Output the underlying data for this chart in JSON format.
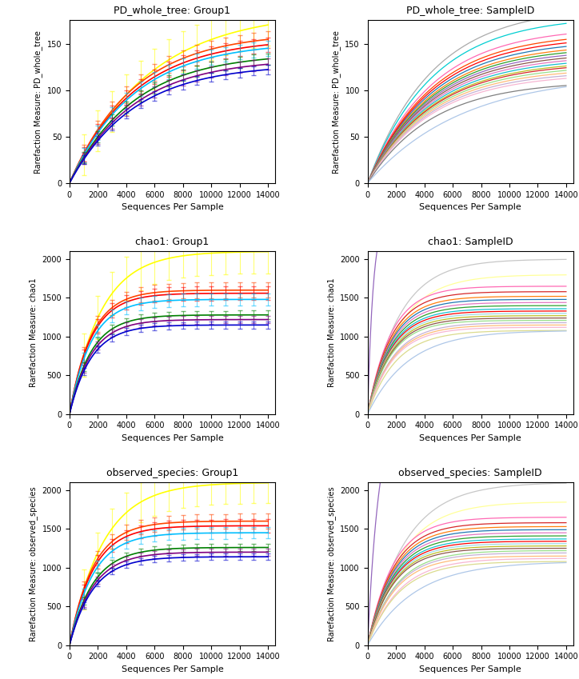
{
  "titles": [
    [
      "PD_whole_tree: Group1",
      "PD_whole_tree: SampleID"
    ],
    [
      "chao1: Group1",
      "chao1: SampleID"
    ],
    [
      "observed_species: Group1",
      "observed_species: SampleID"
    ]
  ],
  "ylabels": [
    "Rarefaction Measure: PD_whole_tree",
    "Rarefaction Measure: chao1",
    "Rarefaction Measure: observed_species"
  ],
  "xlabel": "Sequences Per Sample",
  "pd_group_ylim": [
    0,
    175
  ],
  "pd_group_yticks": [
    0,
    50,
    100,
    150
  ],
  "chao1_ylim": [
    0,
    2100
  ],
  "chao1_yticks": [
    0,
    500,
    1000,
    1500,
    2000
  ],
  "obs_ylim": [
    0,
    2100
  ],
  "obs_yticks": [
    0,
    500,
    1000,
    1500,
    2000
  ],
  "group1_colors": [
    "#ffff00",
    "#ff4500",
    "#ff0000",
    "#00bfff",
    "#008000",
    "#800080",
    "#0000cd"
  ],
  "background_color": "#ffffff",
  "figsize": [
    7.24,
    8.49
  ],
  "dpi": 100
}
